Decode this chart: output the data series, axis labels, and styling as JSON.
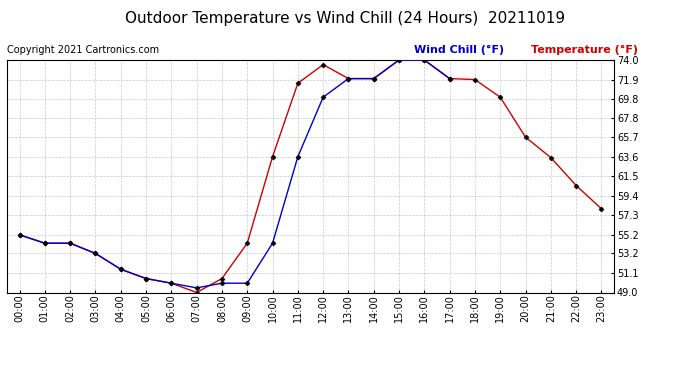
{
  "title": "Outdoor Temperature vs Wind Chill (24 Hours)  20211019",
  "copyright": "Copyright 2021 Cartronics.com",
  "legend_wind_chill": "Wind Chill (°F)",
  "legend_temperature": "Temperature (°F)",
  "hours": [
    "00:00",
    "01:00",
    "02:00",
    "03:00",
    "04:00",
    "05:00",
    "06:00",
    "07:00",
    "08:00",
    "09:00",
    "10:00",
    "11:00",
    "12:00",
    "13:00",
    "14:00",
    "15:00",
    "16:00",
    "17:00",
    "18:00",
    "19:00",
    "20:00",
    "21:00",
    "22:00",
    "23:00"
  ],
  "temperature": [
    55.2,
    54.3,
    54.3,
    53.2,
    51.5,
    50.5,
    50.0,
    49.0,
    50.5,
    54.3,
    63.6,
    71.5,
    73.5,
    72.0,
    72.0,
    74.0,
    74.0,
    72.0,
    71.9,
    70.0,
    65.7,
    63.5,
    60.5,
    58.0
  ],
  "wind_chill": [
    55.2,
    54.3,
    54.3,
    53.2,
    51.5,
    50.5,
    50.0,
    49.5,
    50.0,
    50.0,
    54.3,
    63.6,
    70.0,
    72.0,
    72.0,
    74.0,
    74.0,
    72.0,
    null,
    null,
    null,
    null,
    null,
    null
  ],
  "ylim_min": 49.0,
  "ylim_max": 74.0,
  "yticks": [
    49.0,
    51.1,
    53.2,
    55.2,
    57.3,
    59.4,
    61.5,
    63.6,
    65.7,
    67.8,
    69.8,
    71.9,
    74.0
  ],
  "temp_color": "#cc0000",
  "wind_color": "#0000cc",
  "marker_color": "#000000",
  "background_color": "#ffffff",
  "grid_color": "#bbbbbb",
  "title_fontsize": 11,
  "copyright_fontsize": 7,
  "legend_fontsize": 8,
  "tick_fontsize": 7
}
